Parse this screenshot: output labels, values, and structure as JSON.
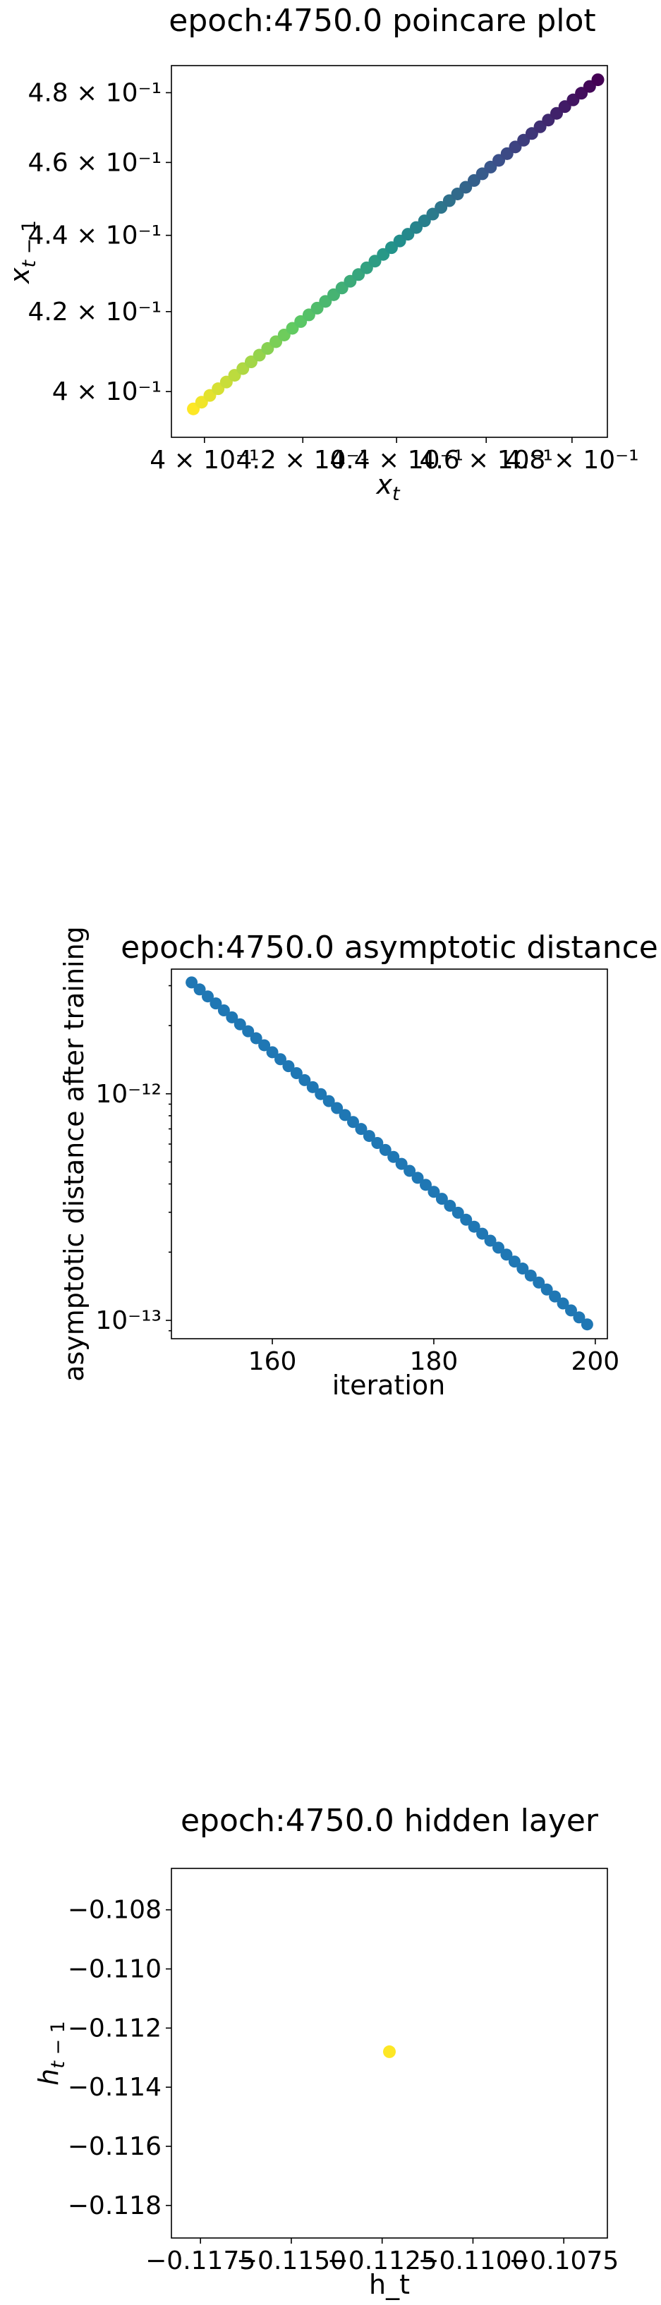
{
  "chart_data": [
    {
      "type": "scatter",
      "title": "epoch:4750.0 poincare plot",
      "xlabel": "x_t",
      "ylabel": "x_{t-1}",
      "scale": "log",
      "xlim": [
        0.3935,
        0.4885
      ],
      "ylim": [
        0.389,
        0.488
      ],
      "x_ticks": [
        0.4,
        0.42,
        0.44,
        0.46,
        0.48
      ],
      "x_tick_labels": [
        "4 × 10⁻¹",
        "4.2 × 10⁻¹",
        "4.4 × 10⁻¹",
        "4.6 × 10⁻¹",
        "4.8 × 10⁻¹"
      ],
      "y_ticks": [
        0.4,
        0.42,
        0.44,
        0.46,
        0.48
      ],
      "y_tick_labels": [
        "4 × 10⁻¹",
        "4.2 × 10⁻¹",
        "4.4 × 10⁻¹",
        "4.6 × 10⁻¹",
        "4.8 × 10⁻¹"
      ],
      "colormap": "viridis",
      "color_order": "yellow at smallest x, purple at largest x",
      "x_start": 0.3978,
      "y_start": 0.3958,
      "x_end": 0.4862,
      "y_end": 0.4838,
      "n_points": 50,
      "grid": false,
      "legend": "none"
    },
    {
      "type": "scatter",
      "title": "epoch:4750.0 asymptotic distance",
      "xlabel": "iteration",
      "ylabel": "asymptotic distance after training",
      "yscale": "log",
      "xlim": [
        147.5,
        201.5
      ],
      "ylim": [
        8.3e-14,
        3.55e-12
      ],
      "x_ticks": [
        160,
        180,
        200
      ],
      "x_tick_labels": [
        "160",
        "180",
        "200"
      ],
      "y_ticks": [
        1e-13,
        1e-12
      ],
      "y_tick_labels": [
        "10⁻¹³",
        "10⁻¹²"
      ],
      "x_start": 150,
      "x_end": 199,
      "y_start": 3.1e-12,
      "y_end": 9.6e-14,
      "color": "#1f77b4",
      "grid": false,
      "legend": "none"
    },
    {
      "type": "scatter",
      "title": "epoch:4750.0 hidden layer",
      "xlabel": "h_t",
      "ylabel": "h_{t-1}",
      "xlim": [
        -0.1183,
        -0.1063
      ],
      "ylim": [
        -0.1191,
        -0.1066
      ],
      "x_ticks": [
        -0.1175,
        -0.115,
        -0.1125,
        -0.11,
        -0.1075
      ],
      "x_tick_labels": [
        "−0.1175",
        "−0.1150",
        "−0.1125",
        "−0.1100",
        "−0.1075"
      ],
      "y_ticks": [
        -0.118,
        -0.116,
        -0.114,
        -0.112,
        -0.11,
        -0.108
      ],
      "y_tick_labels": [
        "−0.118",
        "−0.116",
        "−0.114",
        "−0.112",
        "−0.110",
        "−0.108"
      ],
      "points": [
        {
          "x": -0.1123,
          "y": -0.1128
        }
      ],
      "color": "#fde725",
      "grid": false,
      "legend": "none"
    }
  ]
}
